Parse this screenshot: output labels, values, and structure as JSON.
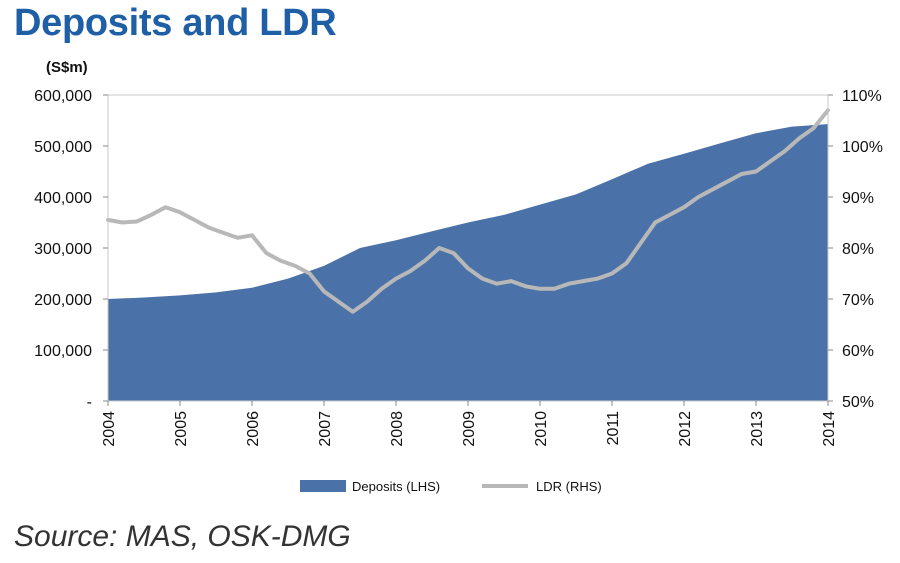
{
  "header": {
    "title": "Deposits and LDR"
  },
  "footer": {
    "source": "Source:  MAS, OSK-DMG"
  },
  "chart_data": {
    "type": "area",
    "unit_label": "(S$m)",
    "x_ticks": [
      "2004",
      "2005",
      "2006",
      "2007",
      "2008",
      "2009",
      "2010",
      "2011",
      "2012",
      "2013",
      "2014"
    ],
    "y_left": {
      "ticks": [
        "-",
        "100,000",
        "200,000",
        "300,000",
        "400,000",
        "500,000",
        "600,000"
      ],
      "range": [
        0,
        600000
      ]
    },
    "y_right": {
      "ticks": [
        "50%",
        "60%",
        "70%",
        "80%",
        "90%",
        "100%",
        "110%"
      ],
      "range": [
        50,
        110
      ]
    },
    "grid": false,
    "legend_position": "bottom",
    "series": [
      {
        "name": "Deposits (LHS)",
        "type": "area",
        "axis": "left",
        "color": "#4a72a8",
        "x": [
          2004.0,
          2004.5,
          2005.0,
          2005.5,
          2006.0,
          2006.5,
          2007.0,
          2007.5,
          2008.0,
          2008.5,
          2009.0,
          2009.5,
          2010.0,
          2010.5,
          2011.0,
          2011.5,
          2012.0,
          2012.5,
          2013.0,
          2013.5,
          2014.0
        ],
        "values": [
          200000,
          203000,
          207000,
          213000,
          222000,
          240000,
          265000,
          300000,
          315000,
          333000,
          350000,
          365000,
          385000,
          405000,
          435000,
          465000,
          485000,
          505000,
          525000,
          538000,
          543000
        ]
      },
      {
        "name": "LDR (RHS)",
        "type": "line",
        "axis": "right",
        "color": "#b8b8b8",
        "x": [
          2004.0,
          2004.2,
          2004.4,
          2004.6,
          2004.8,
          2005.0,
          2005.2,
          2005.4,
          2005.6,
          2005.8,
          2006.0,
          2006.2,
          2006.4,
          2006.6,
          2006.8,
          2007.0,
          2007.2,
          2007.4,
          2007.6,
          2007.8,
          2008.0,
          2008.2,
          2008.4,
          2008.6,
          2008.8,
          2009.0,
          2009.2,
          2009.4,
          2009.6,
          2009.8,
          2010.0,
          2010.2,
          2010.4,
          2010.6,
          2010.8,
          2011.0,
          2011.2,
          2011.4,
          2011.6,
          2011.8,
          2012.0,
          2012.2,
          2012.4,
          2012.6,
          2012.8,
          2013.0,
          2013.2,
          2013.4,
          2013.6,
          2013.8,
          2014.0
        ],
        "values": [
          85.5,
          85.0,
          85.2,
          86.5,
          88.0,
          87.0,
          85.5,
          84.0,
          83.0,
          82.0,
          82.5,
          79.0,
          77.5,
          76.5,
          75.0,
          71.5,
          69.5,
          67.5,
          69.5,
          72.0,
          74.0,
          75.5,
          77.5,
          80.0,
          79.0,
          76.0,
          74.0,
          73.0,
          73.5,
          72.5,
          72.0,
          72.0,
          73.0,
          73.5,
          74.0,
          75.0,
          77.0,
          81.0,
          85.0,
          86.5,
          88.0,
          90.0,
          91.5,
          93.0,
          94.5,
          95.0,
          97.0,
          99.0,
          101.5,
          103.5,
          107.0
        ]
      }
    ]
  }
}
